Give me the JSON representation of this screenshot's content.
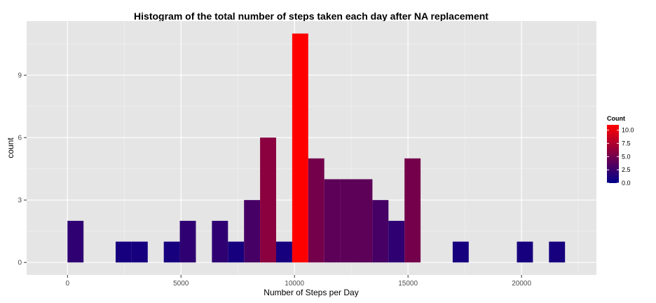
{
  "chart_data": {
    "type": "bar",
    "title": "Histogram of the total number of steps taken each day after NA replacement",
    "xlabel": "Number of Steps per Day",
    "ylabel": "count",
    "xlim": [
      -1800,
      23300
    ],
    "ylim": [
      -0.6,
      11.6
    ],
    "x_ticks": [
      0,
      5000,
      10000,
      15000,
      20000
    ],
    "x_tick_labels": [
      "0",
      "5000",
      "10000",
      "15000",
      "20000"
    ],
    "y_ticks": [
      0,
      3,
      6,
      9
    ],
    "y_tick_labels": [
      "0",
      "3",
      "6",
      "9"
    ],
    "grid": true,
    "bin_width": 707,
    "bins": [
      {
        "x": 353,
        "count": 2
      },
      {
        "x": 2474,
        "count": 1
      },
      {
        "x": 3181,
        "count": 1
      },
      {
        "x": 4595,
        "count": 1
      },
      {
        "x": 5302,
        "count": 2
      },
      {
        "x": 6716,
        "count": 2
      },
      {
        "x": 7423,
        "count": 1
      },
      {
        "x": 8130,
        "count": 3
      },
      {
        "x": 8837,
        "count": 6
      },
      {
        "x": 9544,
        "count": 1
      },
      {
        "x": 10251,
        "count": 11
      },
      {
        "x": 10958,
        "count": 5
      },
      {
        "x": 11665,
        "count": 4
      },
      {
        "x": 12372,
        "count": 4
      },
      {
        "x": 13079,
        "count": 4
      },
      {
        "x": 13786,
        "count": 3
      },
      {
        "x": 14493,
        "count": 2
      },
      {
        "x": 15200,
        "count": 5
      },
      {
        "x": 17321,
        "count": 1
      },
      {
        "x": 20149,
        "count": 1
      },
      {
        "x": 21563,
        "count": 1
      }
    ],
    "legend": {
      "title": "Count",
      "placement": "right",
      "range": [
        0,
        11
      ],
      "labels": [
        {
          "value": 10,
          "text": "10.0"
        },
        {
          "value": 7.5,
          "text": "7.5"
        },
        {
          "value": 5,
          "text": "5.0"
        },
        {
          "value": 2.5,
          "text": "2.5"
        },
        {
          "value": 0,
          "text": "0.0"
        }
      ]
    },
    "colors": {
      "low": "#00008b",
      "high": "#ff0000",
      "panel": "#e5e5e5",
      "grid_major": "#ffffff",
      "grid_minor": "#f2f2f2"
    }
  }
}
